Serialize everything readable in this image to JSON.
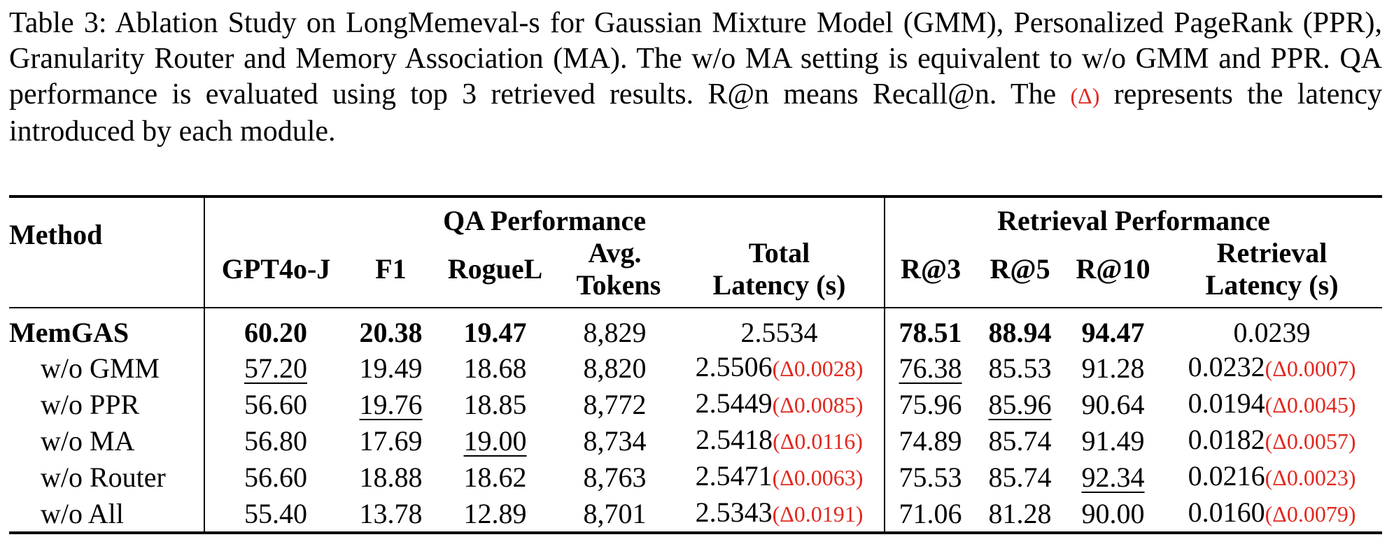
{
  "caption": {
    "before": "Table 3: Ablation Study on LongMemeval-s for Gaussian Mixture Model (GMM), Personalized PageRank (PPR), Granularity Router and Memory Association (MA). The w/o MA setting is equivalent to w/o GMM and PPR. QA performance is evaluated using top 3 retrieved results. R@n means Recall@n. The ",
    "delta": "(Δ)",
    "after": " represents the latency introduced by each module."
  },
  "table": {
    "method_header": "Method",
    "groups": [
      "QA Performance",
      "Retrieval Performance"
    ],
    "columns": [
      "GPT4o-J",
      "F1",
      "RogueL",
      "Avg. Tokens",
      "Total Latency (s)",
      "R@3",
      "R@5",
      "R@10",
      "Retrieval Latency (s)"
    ],
    "rows": [
      {
        "method": "MemGAS",
        "cells": [
          "60.20",
          "20.38",
          "19.47",
          "8,829",
          "2.5534",
          "78.51",
          "88.94",
          "94.47",
          "0.0239"
        ]
      },
      {
        "method": "w/o GMM",
        "cells": [
          "57.20",
          "19.49",
          "18.68",
          "8,820",
          "2.5506",
          "76.38",
          "85.53",
          "91.28",
          "0.0232"
        ],
        "deltas": [
          "(Δ0.0028)",
          "(Δ0.0007)"
        ]
      },
      {
        "method": "w/o PPR",
        "cells": [
          "56.60",
          "19.76",
          "18.85",
          "8,772",
          "2.5449",
          "75.96",
          "85.96",
          "90.64",
          "0.0194"
        ],
        "deltas": [
          "(Δ0.0085)",
          "(Δ0.0045)"
        ]
      },
      {
        "method": "w/o MA",
        "cells": [
          "56.80",
          "17.69",
          "19.00",
          "8,734",
          "2.5418",
          "74.89",
          "85.74",
          "91.49",
          "0.0182"
        ],
        "deltas": [
          "(Δ0.0116)",
          "(Δ0.0057)"
        ]
      },
      {
        "method": "w/o Router",
        "cells": [
          "56.60",
          "18.88",
          "18.62",
          "8,763",
          "2.5471",
          "75.53",
          "85.74",
          "92.34",
          "0.0216"
        ],
        "deltas": [
          "(Δ0.0063)",
          "(Δ0.0023)"
        ]
      },
      {
        "method": "w/o All",
        "cells": [
          "55.40",
          "13.78",
          "12.89",
          "8,701",
          "2.5343",
          "71.06",
          "81.28",
          "90.00",
          "0.0160"
        ],
        "deltas": [
          "(Δ0.0191)",
          "(Δ0.0079)"
        ]
      }
    ]
  }
}
